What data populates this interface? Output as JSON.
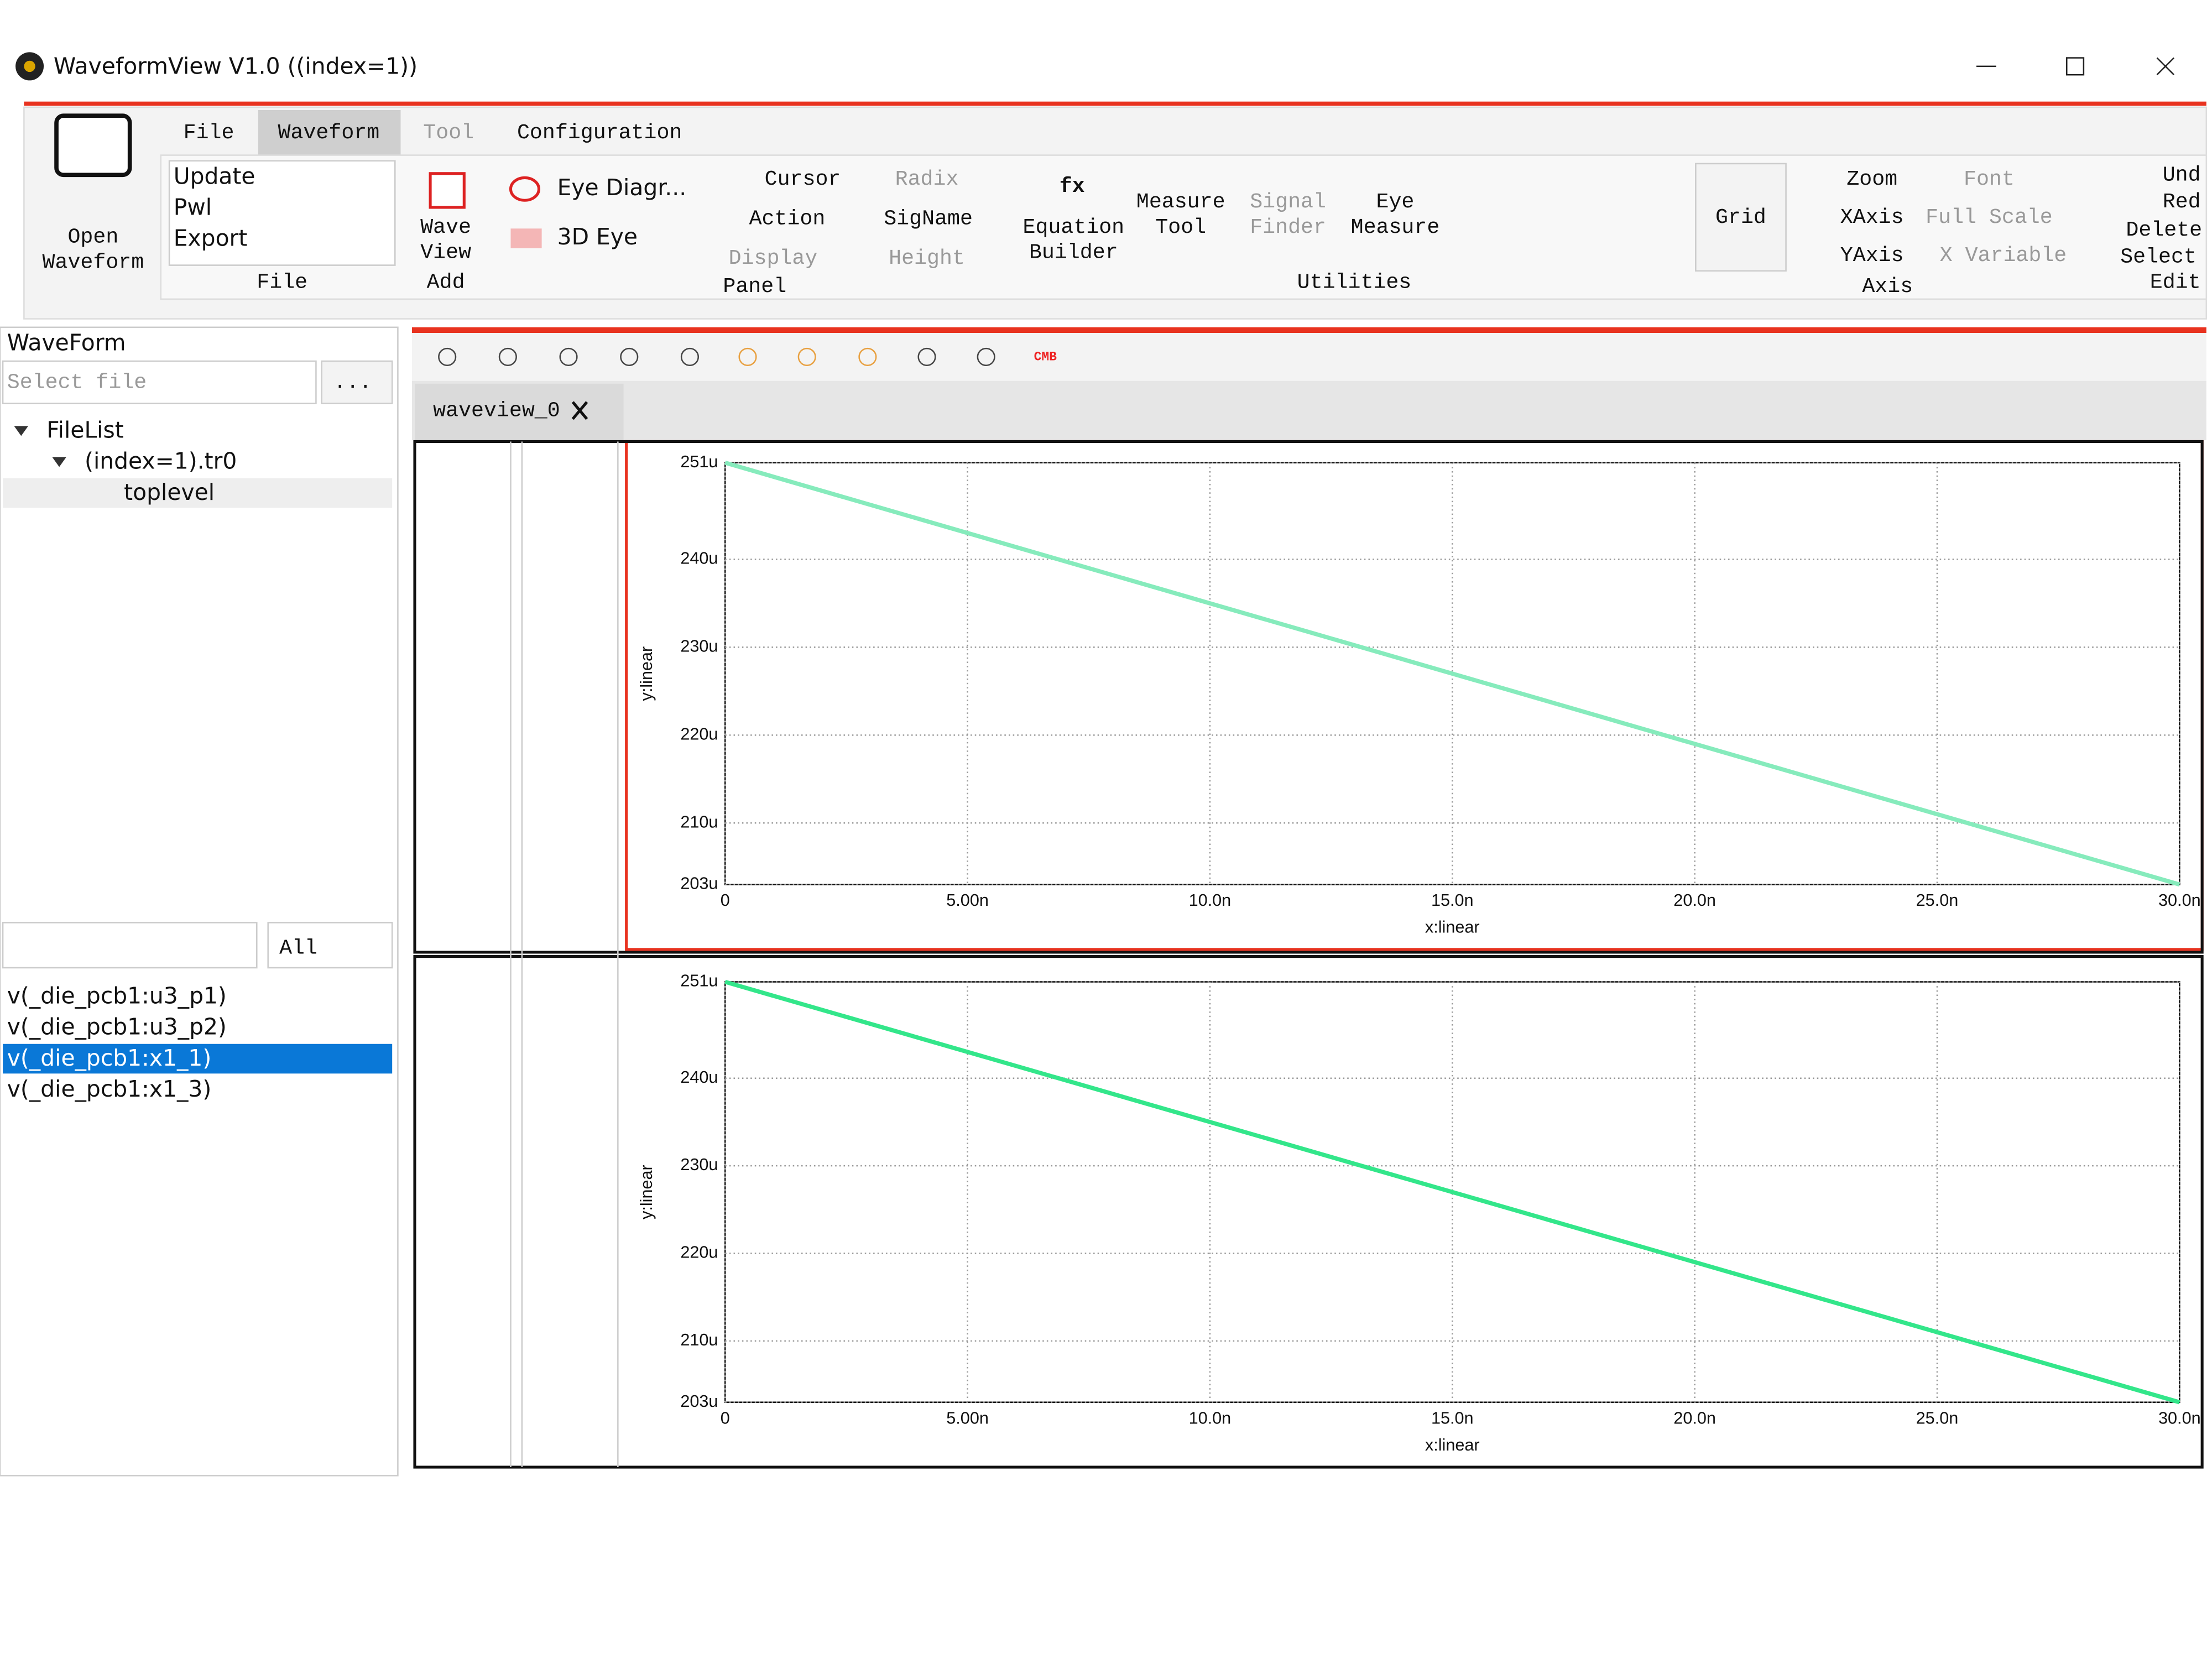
{
  "window": {
    "title": "WaveformView V1.0 ((index=1))"
  },
  "ribbon": {
    "tabs": [
      "File",
      "Waveform",
      "Tool",
      "Configuration"
    ],
    "open_button": [
      "Open",
      "Waveform"
    ],
    "file_group": {
      "items": [
        "Update",
        "Pwl",
        "Export"
      ],
      "label": "File"
    },
    "add_group": {
      "button": [
        "Wave",
        "View"
      ],
      "label": "Add"
    },
    "panel_group": {
      "eye_items": [
        "Eye Diagr...",
        "3D Eye"
      ],
      "cursor": "Cursor",
      "action": "Action",
      "display": "Display",
      "radix": "Radix",
      "signame": "SigName",
      "height": "Height",
      "label": "Panel"
    },
    "utilities_group": {
      "fx": "fx",
      "equation_builder": [
        "Equation",
        "Builder"
      ],
      "measure_tool": [
        "Measure",
        "Tool"
      ],
      "signal_finder": [
        "Signal",
        "Finder"
      ],
      "eye_measure": [
        "Eye",
        "Measure"
      ],
      "label": "Utilities"
    },
    "grid": "Grid",
    "axis_group": {
      "zoom": "Zoom",
      "xaxis": "XAxis",
      "yaxis": "YAxis",
      "font": "Font",
      "full_scale": "Full Scale",
      "x_variable": "X Variable",
      "label": "Axis"
    },
    "edit_group": {
      "undo": "Und",
      "redo": "Red",
      "delete": "Delete",
      "select": "Select",
      "label": "Edit"
    }
  },
  "sidebar": {
    "title": "WaveForm",
    "file_placeholder": "Select file",
    "browse": "...",
    "tree": [
      "FileList",
      "(index=1).tr0",
      "toplevel"
    ],
    "filter": "All",
    "signals": [
      "v(_die_pcb1:u3_p1)",
      "v(_die_pcb1:u3_p2)",
      "v(_die_pcb1:x1_1)",
      "v(_die_pcb1:x1_3)"
    ],
    "selected_signal": 2
  },
  "toolbar": {
    "cmb": "CMB"
  },
  "tab": {
    "name": "waveview_0"
  },
  "plots": [
    {
      "type": "line",
      "x_label": "x:linear",
      "y_label": "y:linear",
      "x": [
        0,
        30
      ],
      "series": [
        {
          "color": "#86ebbc",
          "values": [
            251,
            203
          ]
        }
      ],
      "xlim": [
        0,
        30
      ],
      "ylim": [
        203,
        251
      ],
      "xticks": [
        0,
        {
          "value": 5,
          "label": "5.00n"
        },
        {
          "value": 10,
          "label": "10.0n"
        },
        {
          "value": 15,
          "label": "15.0n"
        },
        {
          "value": 20,
          "label": "20.0n"
        },
        {
          "value": 25,
          "label": "25.0n"
        },
        {
          "value": 30,
          "label": "30.0n"
        }
      ],
      "yticks": [
        {
          "value": 203,
          "label": "203u"
        },
        {
          "value": 210,
          "label": "210u"
        },
        {
          "value": 220,
          "label": "220u"
        },
        {
          "value": 230,
          "label": "230u"
        },
        {
          "value": 240,
          "label": "240u"
        },
        {
          "value": 251,
          "label": "251u"
        }
      ],
      "grid": true
    },
    {
      "type": "line",
      "x_label": "x:linear",
      "y_label": "y:linear",
      "x": [
        0,
        30
      ],
      "series": [
        {
          "color": "#33e68a",
          "values": [
            251,
            203
          ]
        }
      ],
      "xlim": [
        0,
        30
      ],
      "ylim": [
        203,
        251
      ],
      "xticks": [
        0,
        {
          "value": 5,
          "label": "5.00n"
        },
        {
          "value": 10,
          "label": "10.0n"
        },
        {
          "value": 15,
          "label": "15.0n"
        },
        {
          "value": 20,
          "label": "20.0n"
        },
        {
          "value": 25,
          "label": "25.0n"
        },
        {
          "value": 30,
          "label": "30.0n"
        }
      ],
      "yticks": [
        {
          "value": 203,
          "label": "203u"
        },
        {
          "value": 210,
          "label": "210u"
        },
        {
          "value": 220,
          "label": "220u"
        },
        {
          "value": 230,
          "label": "230u"
        },
        {
          "value": 240,
          "label": "240u"
        },
        {
          "value": 251,
          "label": "251u"
        }
      ],
      "grid": true
    }
  ]
}
